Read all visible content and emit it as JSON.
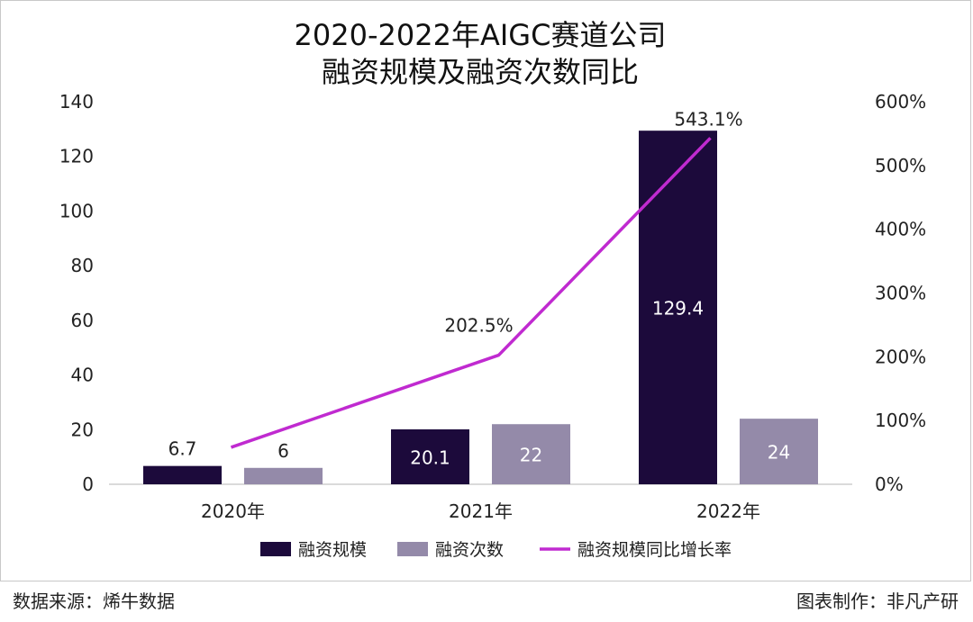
{
  "chart_data": {
    "type": "bar+line",
    "title_line1": "2020-2022年AIGC赛道公司",
    "title_line2": "融资规模及融资次数同比",
    "categories": [
      "2020年",
      "2021年",
      "2022年"
    ],
    "series": [
      {
        "name": "融资规模",
        "type": "bar",
        "axis": "left",
        "color": "#1c0a3b",
        "values": [
          6.7,
          20.1,
          129.4
        ],
        "labels": [
          "6.7",
          "20.1",
          "129.4"
        ]
      },
      {
        "name": "融资次数",
        "type": "bar",
        "axis": "left",
        "color": "#948aa9",
        "values": [
          6,
          22,
          24
        ],
        "labels": [
          "6",
          "22",
          "24"
        ]
      },
      {
        "name": "融资规模同比增长率",
        "type": "line",
        "axis": "right",
        "color": "#c02ad0",
        "values": [
          null,
          202.5,
          543.1
        ],
        "labels": [
          "",
          "202.5%",
          "543.1%"
        ]
      }
    ],
    "y_left": {
      "min": 0,
      "max": 140,
      "ticks": [
        "0",
        "20",
        "40",
        "60",
        "80",
        "100",
        "120",
        "140"
      ]
    },
    "y_right": {
      "min": 0,
      "max": 600,
      "ticks": [
        "0%",
        "100%",
        "200%",
        "300%",
        "400%",
        "500%",
        "600%"
      ]
    },
    "grid": false,
    "legend_position": "bottom"
  },
  "footer": {
    "source": "数据来源：烯牛数据",
    "credit": "图表制作：非凡产研"
  }
}
